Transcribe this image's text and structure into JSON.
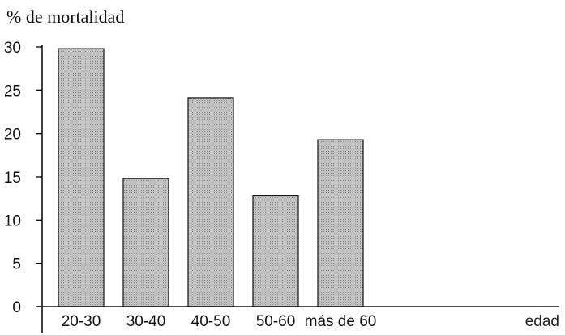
{
  "chart_data": {
    "type": "bar",
    "title": "",
    "ylabel": "% de mortalidad",
    "xlabel": "edad",
    "categories": [
      "20-30",
      "30-40",
      "40-50",
      "50-60",
      "más de 60"
    ],
    "values": [
      29.8,
      14.8,
      24.1,
      12.8,
      19.3
    ],
    "ylim": [
      0,
      30
    ],
    "yticks": [
      0,
      5,
      10,
      15,
      20,
      25,
      30
    ],
    "grid": false,
    "bar_color": "#bdbdbd",
    "bar_pattern": "dotted"
  }
}
